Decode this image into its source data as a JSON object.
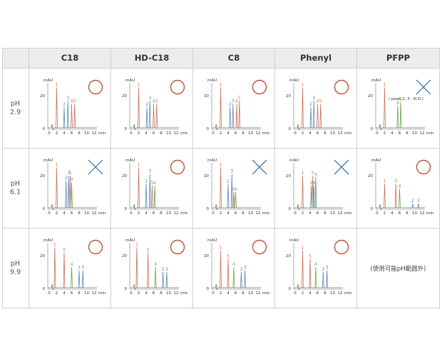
{
  "columns": [
    "C18",
    "HD-C18",
    "C8",
    "Phenyl",
    "PFPP"
  ],
  "rows": [
    {
      "label": [
        "pH",
        "2.9"
      ]
    },
    {
      "label": [
        "pH",
        "6.1"
      ]
    },
    {
      "label": [
        "pH",
        "9.9"
      ]
    }
  ],
  "axis": {
    "y_unit": "mAU",
    "y_ticks": [
      "0",
      "20"
    ],
    "x_ticks": [
      "0",
      "2",
      "4",
      "6",
      "8",
      "10",
      "12"
    ],
    "x_unit": "min"
  },
  "colors": {
    "ok_mark": "#b8553f",
    "ng_mark": "#4a78a8",
    "peak_red": "#c8705a",
    "peak_blue": "#5a86b8",
    "peak_green": "#6aa04a",
    "baseline": "#4e8f3a"
  },
  "chart_data": {
    "type": "table",
    "note_not_applicable": "(使用可能pH範囲外)",
    "note_pfpp_29": "( peak 2, 3 : N.D.)",
    "cells": [
      [
        {
          "mark": "circle",
          "peaks": [
            {
              "label": "1",
              "t": 2.0,
              "h": 25,
              "c": "red"
            },
            {
              "label": "2",
              "t": 4.0,
              "h": 13,
              "c": "blue"
            },
            {
              "label": "3",
              "t": 5.0,
              "h": 17,
              "c": "blue"
            },
            {
              "label": "4",
              "t": 6.0,
              "h": 15,
              "c": "red"
            },
            {
              "label": "5",
              "t": 6.8,
              "h": 15,
              "c": "red"
            }
          ]
        },
        {
          "mark": "circle",
          "peaks": [
            {
              "label": "1",
              "t": 2.0,
              "h": 25,
              "c": "red"
            },
            {
              "label": "2",
              "t": 4.2,
              "h": 13,
              "c": "blue"
            },
            {
              "label": "3",
              "t": 5.0,
              "h": 17,
              "c": "blue"
            },
            {
              "label": "4",
              "t": 6.0,
              "h": 15,
              "c": "red"
            },
            {
              "label": "5",
              "t": 6.8,
              "h": 15,
              "c": "red"
            }
          ]
        },
        {
          "mark": "circle",
          "peaks": [
            {
              "label": "1",
              "t": 2.0,
              "h": 25,
              "c": "red"
            },
            {
              "label": "2",
              "t": 4.5,
              "h": 13,
              "c": "blue"
            },
            {
              "label": "3",
              "t": 5.3,
              "h": 15,
              "c": "blue"
            },
            {
              "label": "4",
              "t": 6.3,
              "h": 15,
              "c": "red"
            },
            {
              "label": "5",
              "t": 7.0,
              "h": 17,
              "c": "red"
            }
          ]
        },
        {
          "mark": "circle",
          "peaks": [
            {
              "label": "1",
              "t": 2.0,
              "h": 25,
              "c": "red"
            },
            {
              "label": "2",
              "t": 4.2,
              "h": 13,
              "c": "blue"
            },
            {
              "label": "3",
              "t": 5.0,
              "h": 17,
              "c": "blue"
            },
            {
              "label": "4",
              "t": 6.0,
              "h": 15,
              "c": "red"
            },
            {
              "label": "5",
              "t": 6.8,
              "h": 15,
              "c": "red"
            }
          ]
        },
        {
          "mark": "cross",
          "peaks": [
            {
              "label": "1",
              "t": 2.0,
              "h": 25,
              "c": "red"
            },
            {
              "label": "4",
              "t": 5.5,
              "h": 14,
              "c": "green"
            },
            {
              "label": "5",
              "t": 6.3,
              "h": 16,
              "c": "green"
            }
          ]
        }
      ],
      [
        {
          "mark": "cross",
          "peaks": [
            {
              "label": "1",
              "t": 2.0,
              "h": 25,
              "c": "red"
            },
            {
              "label": "2",
              "t": 4.5,
              "h": 17,
              "c": "blue"
            },
            {
              "label": "3",
              "t": 5.2,
              "h": 20,
              "c": "blue"
            },
            {
              "label": "4",
              "t": 6.0,
              "h": 16,
              "c": "green"
            },
            {
              "label": "5",
              "t": 5.6,
              "h": 20,
              "c": "red"
            }
          ]
        },
        {
          "mark": "circle",
          "peaks": [
            {
              "label": "1",
              "t": 2.0,
              "h": 25,
              "c": "red"
            },
            {
              "label": "2",
              "t": 4.0,
              "h": 15,
              "c": "blue"
            },
            {
              "label": "3",
              "t": 5.0,
              "h": 21,
              "c": "blue"
            },
            {
              "label": "4",
              "t": 6.3,
              "h": 14,
              "c": "green"
            },
            {
              "label": "5",
              "t": 5.6,
              "h": 14,
              "c": "red"
            }
          ]
        },
        {
          "mark": "cross",
          "peaks": [
            {
              "label": "1",
              "t": 2.0,
              "h": 25,
              "c": "red"
            },
            {
              "label": "2",
              "t": 4.0,
              "h": 15,
              "c": "blue"
            },
            {
              "label": "3",
              "t": 5.0,
              "h": 21,
              "c": "blue"
            },
            {
              "label": "4",
              "t": 6.0,
              "h": 10,
              "c": "green"
            },
            {
              "label": "5",
              "t": 5.5,
              "h": 10,
              "c": "red"
            }
          ]
        },
        {
          "mark": "cross",
          "peaks": [
            {
              "label": "1",
              "t": 2.0,
              "h": 20,
              "c": "red"
            },
            {
              "label": "2",
              "t": 4.3,
              "h": 14,
              "c": "blue"
            },
            {
              "label": "3",
              "t": 5.5,
              "h": 19,
              "c": "blue"
            },
            {
              "label": "4",
              "t": 5.0,
              "h": 14,
              "c": "green"
            },
            {
              "label": "5",
              "t": 4.7,
              "h": 20,
              "c": "red"
            }
          ]
        },
        {
          "mark": "circle",
          "peaks": [
            {
              "label": "1",
              "t": 2.0,
              "h": 15,
              "c": "red"
            },
            {
              "label": "2",
              "t": 9.5,
              "h": 3,
              "c": "blue"
            },
            {
              "label": "3",
              "t": 11.0,
              "h": 3,
              "c": "blue"
            },
            {
              "label": "4",
              "t": 6.0,
              "h": 12,
              "c": "green"
            },
            {
              "label": "5",
              "t": 5.0,
              "h": 15,
              "c": "red"
            }
          ]
        }
      ],
      [
        {
          "mark": "circle",
          "peaks": [
            {
              "label": "1",
              "t": 1.5,
              "h": 25,
              "c": "red"
            },
            {
              "label": "2",
              "t": 8.0,
              "h": 11,
              "c": "blue"
            },
            {
              "label": "3",
              "t": 9.0,
              "h": 11,
              "c": "blue"
            },
            {
              "label": "4",
              "t": 6.0,
              "h": 13,
              "c": "green"
            },
            {
              "label": "5",
              "t": 4.0,
              "h": 22,
              "c": "red"
            }
          ]
        },
        {
          "mark": "circle",
          "peaks": [
            {
              "label": "1",
              "t": 1.5,
              "h": 25,
              "c": "red"
            },
            {
              "label": "2",
              "t": 8.5,
              "h": 10,
              "c": "blue"
            },
            {
              "label": "3",
              "t": 9.5,
              "h": 10,
              "c": "blue"
            },
            {
              "label": "4",
              "t": 6.5,
              "h": 13,
              "c": "green"
            },
            {
              "label": "5",
              "t": 4.5,
              "h": 22,
              "c": "red"
            }
          ]
        },
        {
          "mark": "circle",
          "peaks": [
            {
              "label": "1",
              "t": 2.0,
              "h": 23,
              "c": "red"
            },
            {
              "label": "2",
              "t": 7.5,
              "h": 10,
              "c": "blue"
            },
            {
              "label": "3",
              "t": 8.5,
              "h": 11,
              "c": "blue"
            },
            {
              "label": "4",
              "t": 5.5,
              "h": 13,
              "c": "green"
            },
            {
              "label": "5",
              "t": 4.0,
              "h": 18,
              "c": "red"
            }
          ]
        },
        {
          "mark": "circle",
          "peaks": [
            {
              "label": "1",
              "t": 2.0,
              "h": 23,
              "c": "red"
            },
            {
              "label": "2",
              "t": 7.5,
              "h": 10,
              "c": "blue"
            },
            {
              "label": "3",
              "t": 8.5,
              "h": 11,
              "c": "blue"
            },
            {
              "label": "4",
              "t": 5.5,
              "h": 13,
              "c": "green"
            },
            {
              "label": "5",
              "t": 4.0,
              "h": 18,
              "c": "red"
            }
          ]
        },
        {
          "mark": "none",
          "peaks": []
        }
      ]
    ]
  }
}
